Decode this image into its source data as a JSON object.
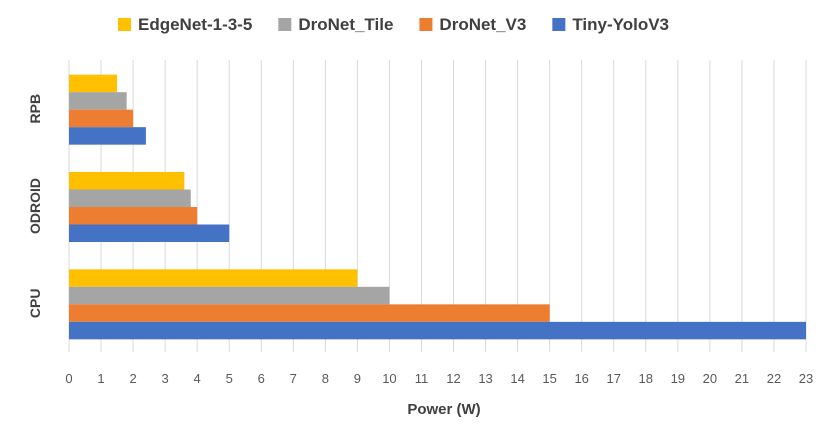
{
  "chart_data": {
    "type": "bar",
    "orientation": "horizontal",
    "categories": [
      "RPB",
      "ODROID",
      "CPU"
    ],
    "series": [
      {
        "name": "Tiny-YoloV3",
        "color": "#4472C4",
        "values": [
          2.4,
          5.0,
          23.0
        ]
      },
      {
        "name": "DroNet_V3",
        "color": "#ED7D31",
        "values": [
          2.0,
          4.0,
          15.0
        ]
      },
      {
        "name": "DroNet_Tile",
        "color": "#A5A5A5",
        "values": [
          1.8,
          3.8,
          10.0
        ]
      },
      {
        "name": "EdgeNet-1-3-5",
        "color": "#FFC000",
        "values": [
          1.5,
          3.6,
          9.0
        ]
      }
    ],
    "legend_order": [
      "EdgeNet-1-3-5",
      "DroNet_Tile",
      "DroNet_V3",
      "Tiny-YoloV3"
    ],
    "xlabel": "Power (W)",
    "ylabel": "",
    "xlim": [
      0,
      23
    ],
    "x_ticks": [
      0,
      1,
      2,
      3,
      4,
      5,
      6,
      7,
      8,
      9,
      10,
      11,
      12,
      13,
      14,
      15,
      16,
      17,
      18,
      19,
      20,
      21,
      22,
      23
    ],
    "grid": true,
    "legend_position": "top"
  }
}
